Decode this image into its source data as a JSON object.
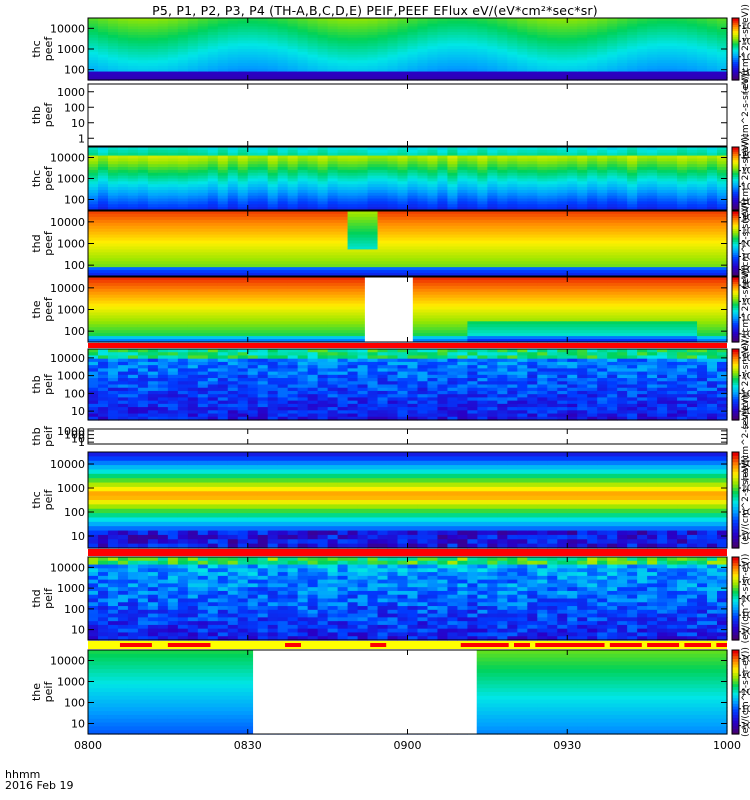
{
  "title": "P5, P1, P2, P3, P4 (TH-A,B,C,D,E) PEIF,PEEF EFlux eV/(eV*cm²*sec*sr)",
  "footer": {
    "time_label": "hhmm",
    "date_label": "2016 Feb 19"
  },
  "colors": {
    "flags_red": "#ff0000",
    "flags_yellow": "#ffff00"
  },
  "chart_data": {
    "type": "heatmap",
    "x_ticks": [
      "0800",
      "0830",
      "0900",
      "0930",
      "1000"
    ],
    "xlim": [
      "08:00",
      "10:00"
    ],
    "colormap": "rainbow (purple-blue-cyan-green-yellow-red)",
    "panels": [
      {
        "label": [
          "thc",
          "peef"
        ],
        "yticks": [
          "100",
          "1000",
          "10000"
        ],
        "log_y": true,
        "cb_ticks": [
          "10⁴",
          "10⁶",
          "10⁸",
          "10¹⁰"
        ],
        "cb_title": "(eV/(cm^2-s-sr-eV))"
      },
      {
        "label": [
          "thb",
          "peef"
        ],
        "yticks": [
          "1",
          "10",
          "100",
          "1000"
        ],
        "log_y": true,
        "cb_ticks": [],
        "cb_title": "(eV/(cm^2-s-sr-eV))",
        "empty": true
      },
      {
        "label": [
          "thc",
          "peef"
        ],
        "yticks": [
          "100",
          "1000",
          "10000"
        ],
        "log_y": true,
        "cb_ticks": [
          "10⁴",
          "10⁶",
          "10⁸",
          "10¹⁰"
        ],
        "cb_title": "(eV/(cm^2-s-sr-eV))"
      },
      {
        "label": [
          "thd",
          "peef"
        ],
        "yticks": [
          "100",
          "1000",
          "10000"
        ],
        "log_y": true,
        "cb_ticks": [
          "10⁴",
          "10⁵",
          "10⁶",
          "10⁷",
          "10⁸"
        ],
        "cb_title": "(eV/(cm^2-s-sr-eV))"
      },
      {
        "label": [
          "the",
          "peef"
        ],
        "yticks": [
          "100",
          "1000",
          "10000"
        ],
        "log_y": true,
        "cb_ticks": [
          "10⁴",
          "10⁵",
          "10⁶",
          "10⁷"
        ],
        "cb_title": "(eV/(cm^2-s-sr-eV))",
        "gap": [
          "08:52",
          "09:01"
        ]
      },
      {
        "label": [
          "thb",
          "peif"
        ],
        "yticks": [
          "10",
          "100",
          "1000",
          "10000"
        ],
        "log_y": true,
        "cb_ticks": [
          "10⁴",
          "10⁵",
          "10⁶",
          "10⁷"
        ],
        "cb_title": "(eV/(cm^2-s-sr-eV))"
      },
      {
        "label": [
          "thb",
          "peif"
        ],
        "yticks": [
          "1",
          "10",
          "100",
          "1000"
        ],
        "log_y": true,
        "cb_ticks": [],
        "cb_title": "(eV/(cm^2-s-sr-eV))",
        "empty": true
      },
      {
        "label": [
          "thc",
          "peif"
        ],
        "yticks": [
          "10",
          "100",
          "1000",
          "10000"
        ],
        "log_y": true,
        "cb_ticks": [
          "10⁴",
          "10⁵",
          "10⁶",
          "10⁷"
        ],
        "cb_title": "(eV/(cm^2-s-sr-eV))"
      },
      {
        "label": [
          "thd",
          "peif"
        ],
        "yticks": [
          "10",
          "100",
          "1000",
          "10000"
        ],
        "log_y": true,
        "cb_ticks": [
          "10⁴",
          "10⁵",
          "10⁶",
          "10⁷",
          "10⁸"
        ],
        "cb_title": "(eV/(cm^2-s-sr-eV))"
      },
      {
        "label": [
          "the",
          "peif"
        ],
        "yticks": [
          "10",
          "100",
          "1000",
          "10000"
        ],
        "log_y": true,
        "cb_ticks": [
          "10⁴",
          "10⁵",
          "10⁶",
          "10⁷",
          "10⁸"
        ],
        "cb_title": "(eV/(cm^2-s-sr-eV))",
        "gap": [
          "08:31",
          "09:13"
        ]
      }
    ],
    "flag_bars": [
      {
        "after_panel": 4,
        "color": "red",
        "segments": [
          [
            "08:00",
            "10:00"
          ]
        ]
      },
      {
        "after_panel": 7,
        "color": "red",
        "segments": [
          [
            "08:00",
            "10:00"
          ]
        ]
      },
      {
        "after_panel": 8,
        "color": "yellow",
        "red_segments": [
          [
            "08:06",
            "08:12"
          ],
          [
            "08:15",
            "08:23"
          ],
          [
            "08:37",
            "08:40"
          ],
          [
            "08:53",
            "08:56"
          ],
          [
            "09:10",
            "09:19"
          ],
          [
            "09:20",
            "09:23"
          ],
          [
            "09:24",
            "09:37"
          ],
          [
            "09:38",
            "09:44"
          ],
          [
            "09:45",
            "09:51"
          ],
          [
            "09:52",
            "09:57"
          ],
          [
            "09:58",
            "10:00"
          ]
        ]
      }
    ]
  }
}
